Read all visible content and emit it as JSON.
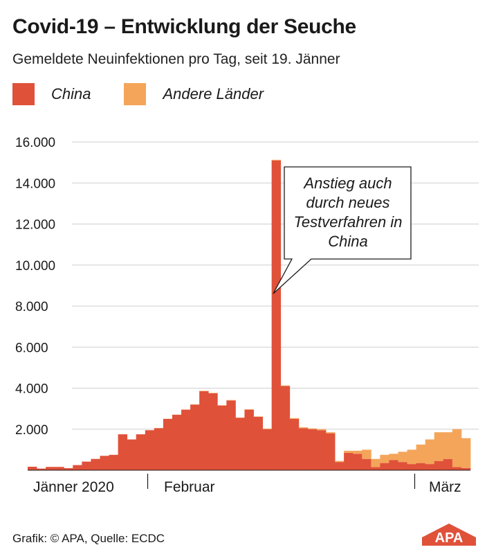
{
  "title": "Covid-19 – Entwicklung der Seuche",
  "subtitle": "Gemeldete Neuinfektionen pro Tag, seit 19. Jänner",
  "legend": [
    {
      "label": "China",
      "color": "#e0513a"
    },
    {
      "label": "Andere Länder",
      "color": "#f4a55a"
    }
  ],
  "annotation": "Anstieg auch durch neues Testverfahren in China",
  "footer": "Grafik: © APA, Quelle: ECDC",
  "logo_text": "APA",
  "chart_data": {
    "type": "bar",
    "stacked": true,
    "x_start": "2020-01-19",
    "x_labels": [
      "Jänner 2020",
      "Februar",
      "März"
    ],
    "y_ticks": [
      2000,
      4000,
      6000,
      8000,
      10000,
      12000,
      14000,
      16000
    ],
    "y_tick_labels": [
      "2.000",
      "4.000",
      "6.000",
      "8.000",
      "10.000",
      "12.000",
      "14.000",
      "16.000"
    ],
    "ylim": [
      0,
      16000
    ],
    "grid": true,
    "series": [
      {
        "name": "China",
        "color": "#e0513a",
        "values": [
          170,
          80,
          160,
          160,
          100,
          250,
          420,
          550,
          700,
          750,
          1750,
          1500,
          1750,
          1950,
          2050,
          2500,
          2700,
          2950,
          3200,
          3850,
          3750,
          3150,
          3400,
          2550,
          2950,
          2600,
          2000,
          15100,
          4100,
          2500,
          2050,
          2000,
          1950,
          1800,
          400,
          850,
          800,
          550,
          150,
          350,
          500,
          400,
          300,
          350,
          300,
          450,
          550,
          150,
          110,
          0
        ]
      },
      {
        "name": "Andere Länder",
        "color": "#f4a55a",
        "values": [
          0,
          0,
          0,
          0,
          0,
          0,
          0,
          0,
          0,
          0,
          0,
          0,
          0,
          0,
          10,
          10,
          10,
          10,
          10,
          20,
          20,
          20,
          20,
          20,
          20,
          20,
          30,
          30,
          30,
          40,
          40,
          40,
          50,
          50,
          50,
          100,
          150,
          450,
          400,
          400,
          300,
          500,
          700,
          900,
          1200,
          1400,
          1300,
          1850,
          1450,
          0
        ]
      }
    ]
  }
}
